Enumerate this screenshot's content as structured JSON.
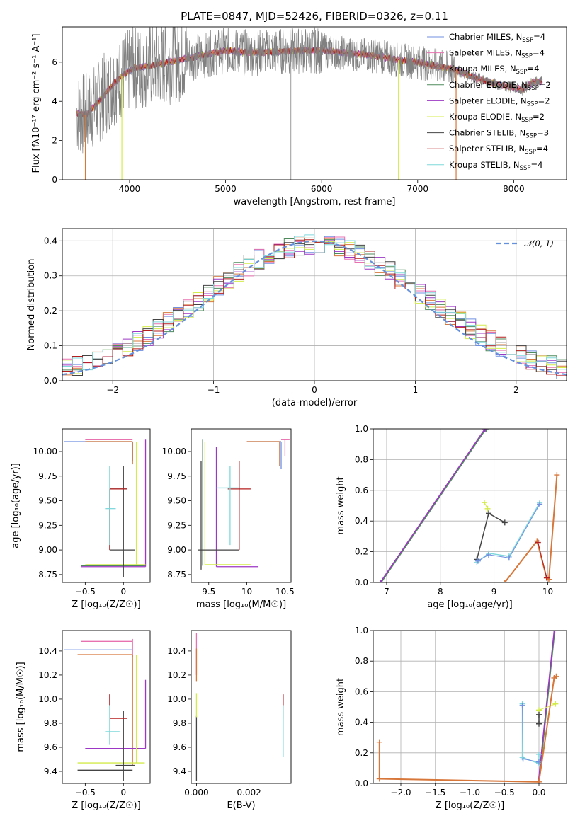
{
  "page": {
    "title": "PLATE=0847, MJD=52426, FIBERID=0326, z=0.11"
  },
  "colors": {
    "Chabrier MILES": "#6f8fe0",
    "Salpeter MILES": "#e872b0",
    "Kroupa MILES": "#d8773a",
    "Chabrier ELODIE": "#4f8a5c",
    "Salpeter ELODIE": "#9b37c4",
    "Kroupa ELODIE": "#d4ec4a",
    "Chabrier STELIB": "#444444",
    "Salpeter STELIB": "#b51e1e",
    "Kroupa STELIB": "#7fd8dc",
    "data": "#808080",
    "normal": "#6490dc"
  },
  "chart_data": [
    {
      "id": "spectrum",
      "type": "line",
      "title": "PLATE=0847, MJD=52426, FIBERID=0326, z=0.11",
      "xlabel": "wavelength [Angstrom, rest frame]",
      "ylabel": "Flux [fλ10⁻¹⁷ erg cm⁻² s⁻¹ A⁻¹]",
      "xlim": [
        3300,
        8550
      ],
      "ylim": [
        0,
        7.8
      ],
      "xticks": [
        4000,
        5000,
        6000,
        7000,
        8000
      ],
      "yticks": [
        0,
        2,
        4,
        6
      ],
      "legend_position": "top-right",
      "legend": [
        {
          "series": "Chabrier MILES",
          "label": "Chabrier MILES, N",
          "sub": "SSP",
          "tail": "=4"
        },
        {
          "series": "Salpeter MILES",
          "label": "Salpeter MILES, N",
          "sub": "SSP",
          "tail": "=4"
        },
        {
          "series": "Kroupa MILES",
          "label": "Kroupa MILES, N",
          "sub": "SSP",
          "tail": "=4"
        },
        {
          "series": "Chabrier ELODIE",
          "label": "Chabrier ELODIE, N",
          "sub": "SSP",
          "tail": "=2"
        },
        {
          "series": "Salpeter ELODIE",
          "label": "Salpeter ELODIE, N",
          "sub": "SSP",
          "tail": "=2"
        },
        {
          "series": "Kroupa ELODIE",
          "label": "Kroupa ELODIE, N",
          "sub": "SSP",
          "tail": "=2"
        },
        {
          "series": "Chabrier STELIB",
          "label": "Chabrier STELIB, N",
          "sub": "SSP",
          "tail": "=3"
        },
        {
          "series": "Salpeter STELIB",
          "label": "Salpeter STELIB, N",
          "sub": "SSP",
          "tail": "=4"
        },
        {
          "series": "Kroupa STELIB",
          "label": "Kroupa STELIB, N",
          "sub": "SSP",
          "tail": "=4"
        }
      ],
      "continuum": {
        "x": [
          3450,
          3550,
          3700,
          3850,
          3950,
          4050,
          4200,
          4400,
          4600,
          4800,
          5000,
          5200,
          5400,
          5600,
          5800,
          6000,
          6200,
          6400,
          6600,
          6800,
          7000,
          7200,
          7400,
          7600,
          7800,
          7950,
          8100,
          8200,
          8300
        ],
        "y": [
          3.4,
          3.3,
          4.1,
          5.0,
          5.4,
          5.7,
          5.8,
          6.0,
          6.2,
          6.4,
          6.6,
          6.5,
          6.5,
          6.55,
          6.6,
          6.6,
          6.5,
          6.4,
          6.3,
          6.1,
          6.0,
          5.8,
          5.6,
          5.2,
          4.9,
          4.75,
          4.6,
          5.0,
          5.0
        ]
      },
      "model_dips": [
        {
          "series": "Kroupa MILES",
          "x": 3540
        },
        {
          "series": "Kroupa ELODIE",
          "x": 3920
        },
        {
          "series": "Kroupa ELODIE",
          "x": 6800
        },
        {
          "series": "Kroupa MILES",
          "x": 7400
        }
      ]
    },
    {
      "id": "residuals",
      "type": "histogram",
      "xlabel": "(data-model)/error",
      "ylabel": "Normed distribution",
      "xlim": [
        -2.5,
        2.5
      ],
      "ylim": [
        0,
        0.435
      ],
      "xticks": [
        -2,
        -1,
        0,
        1,
        2
      ],
      "yticks": [
        0.0,
        0.1,
        0.2,
        0.3,
        0.4
      ],
      "bin_width": 0.1,
      "normal_label": "𝒩(0, 1)",
      "legend_position": "top-right"
    },
    {
      "id": "age-vs-Z",
      "type": "scatter",
      "xlabel": "Z [log₁₀(Z/Z☉)]",
      "ylabel": "age  [log₁₀(age/yr)]",
      "xlim": [
        -0.8,
        0.35
      ],
      "ylim": [
        8.67,
        10.23
      ],
      "xticks": [
        -0.5,
        0.0
      ],
      "yticks": [
        8.75,
        9.0,
        9.25,
        9.5,
        9.75,
        10.0
      ],
      "ytick_labels": [
        "8.75",
        "9.00",
        "9.25",
        "9.50",
        "9.75",
        "10.00"
      ],
      "segments": [
        {
          "series": "Chabrier MILES",
          "x1": -0.78,
          "y1": 10.1,
          "x2": 0.12,
          "y2": 10.1
        },
        {
          "series": "Chabrier MILES",
          "x1": 0.12,
          "y1": 10.1,
          "x2": 0.12,
          "y2": 9.9
        },
        {
          "series": "Salpeter MILES",
          "x1": -0.5,
          "y1": 10.12,
          "x2": 0.12,
          "y2": 10.12
        },
        {
          "series": "Kroupa MILES",
          "x1": -0.5,
          "y1": 10.1,
          "x2": 0.12,
          "y2": 10.1
        },
        {
          "series": "Kroupa MILES",
          "x1": 0.12,
          "y1": 10.1,
          "x2": 0.12,
          "y2": 9.87
        },
        {
          "series": "Chabrier ELODIE",
          "x1": -0.55,
          "y1": 8.84,
          "x2": 0.29,
          "y2": 8.84
        },
        {
          "series": "Salpeter ELODIE",
          "x1": -0.55,
          "y1": 8.83,
          "x2": 0.29,
          "y2": 8.83
        },
        {
          "series": "Salpeter ELODIE",
          "x1": 0.29,
          "y1": 8.83,
          "x2": 0.29,
          "y2": 10.12
        },
        {
          "series": "Kroupa ELODIE",
          "x1": -0.5,
          "y1": 8.85,
          "x2": 0.29,
          "y2": 8.85
        },
        {
          "series": "Kroupa ELODIE",
          "x1": 0.17,
          "y1": 8.85,
          "x2": 0.17,
          "y2": 10.1
        },
        {
          "series": "Chabrier STELIB",
          "x1": -0.18,
          "y1": 9.62,
          "x2": 0.05,
          "y2": 9.62
        },
        {
          "series": "Chabrier STELIB",
          "x1": -0.18,
          "y1": 9.0,
          "x2": 0.15,
          "y2": 9.0
        },
        {
          "series": "Chabrier STELIB",
          "x1": 0.0,
          "y1": 8.72,
          "x2": 0.0,
          "y2": 9.85
        },
        {
          "series": "Salpeter STELIB",
          "x1": -0.18,
          "y1": 9.0,
          "x2": -0.18,
          "y2": 9.62
        },
        {
          "series": "Salpeter STELIB",
          "x1": -0.18,
          "y1": 9.62,
          "x2": 0.05,
          "y2": 9.62
        },
        {
          "series": "Kroupa STELIB",
          "x1": -0.18,
          "y1": 9.05,
          "x2": -0.18,
          "y2": 9.85
        },
        {
          "series": "Kroupa STELIB",
          "x1": -0.24,
          "y1": 9.42,
          "x2": -0.1,
          "y2": 9.42
        }
      ]
    },
    {
      "id": "age-vs-mass",
      "type": "scatter",
      "xlabel": "mass [log₁₀(M/M☉)]",
      "ylabel": "",
      "xlim": [
        9.27,
        10.58
      ],
      "ylim": [
        8.67,
        10.23
      ],
      "xticks": [
        9.5,
        10.0,
        10.5
      ],
      "yticks": [
        8.75,
        9.0,
        9.25,
        9.5,
        9.75,
        10.0
      ],
      "ytick_labels": [
        "8.75",
        "9.00",
        "9.25",
        "9.50",
        "9.75",
        "10.00"
      ],
      "segments": [
        {
          "series": "Chabrier MILES",
          "x1": 10.0,
          "y1": 10.1,
          "x2": 10.45,
          "y2": 10.1
        },
        {
          "series": "Chabrier MILES",
          "x1": 10.45,
          "y1": 10.1,
          "x2": 10.45,
          "y2": 9.82
        },
        {
          "series": "Salpeter MILES",
          "x1": 10.45,
          "y1": 10.12,
          "x2": 10.56,
          "y2": 10.12
        },
        {
          "series": "Salpeter MILES",
          "x1": 10.5,
          "y1": 10.12,
          "x2": 10.5,
          "y2": 9.95
        },
        {
          "series": "Kroupa MILES",
          "x1": 10.0,
          "y1": 10.1,
          "x2": 10.43,
          "y2": 10.1
        },
        {
          "series": "Kroupa MILES",
          "x1": 10.43,
          "y1": 10.1,
          "x2": 10.43,
          "y2": 9.85
        },
        {
          "series": "Chabrier ELODIE",
          "x1": 9.42,
          "y1": 8.84,
          "x2": 9.42,
          "y2": 10.12
        },
        {
          "series": "Salpeter ELODIE",
          "x1": 9.6,
          "y1": 8.83,
          "x2": 10.15,
          "y2": 8.83
        },
        {
          "series": "Salpeter ELODIE",
          "x1": 9.6,
          "y1": 8.83,
          "x2": 9.6,
          "y2": 10.05
        },
        {
          "series": "Kroupa ELODIE",
          "x1": 9.45,
          "y1": 8.85,
          "x2": 10.05,
          "y2": 8.85
        },
        {
          "series": "Kroupa ELODIE",
          "x1": 9.45,
          "y1": 8.85,
          "x2": 9.45,
          "y2": 10.1
        },
        {
          "series": "Chabrier STELIB",
          "x1": 9.36,
          "y1": 9.0,
          "x2": 9.9,
          "y2": 9.0
        },
        {
          "series": "Chabrier STELIB",
          "x1": 9.4,
          "y1": 8.8,
          "x2": 9.4,
          "y2": 9.9
        },
        {
          "series": "Salpeter STELIB",
          "x1": 9.75,
          "y1": 9.62,
          "x2": 10.05,
          "y2": 9.62
        },
        {
          "series": "Salpeter STELIB",
          "x1": 9.9,
          "y1": 9.0,
          "x2": 9.9,
          "y2": 9.9
        },
        {
          "series": "Kroupa STELIB",
          "x1": 9.78,
          "y1": 9.05,
          "x2": 9.78,
          "y2": 9.85
        },
        {
          "series": "Kroupa STELIB",
          "x1": 9.6,
          "y1": 9.63,
          "x2": 9.9,
          "y2": 9.63
        }
      ]
    },
    {
      "id": "weight-vs-age",
      "type": "line",
      "xlabel": "age  [log₁₀(age/yr)]",
      "ylabel": "mass weight",
      "xlim": [
        6.75,
        10.35
      ],
      "ylim": [
        0,
        1
      ],
      "xticks": [
        7,
        8,
        9,
        10
      ],
      "yticks": [
        0.0,
        0.2,
        0.4,
        0.6,
        0.8,
        1.0
      ],
      "series": [
        {
          "name": "Chabrier ELODIE",
          "x": [
            6.9,
            8.85
          ],
          "y": [
            0.0,
            1.0
          ],
          "width": 1.5
        },
        {
          "name": "Salpeter ELODIE",
          "x": [
            6.88,
            8.83
          ],
          "y": [
            0.0,
            1.0
          ],
          "width": 1.5
        },
        {
          "name": "Kroupa ELODIE",
          "x": [
            8.82,
            8.88
          ],
          "y": [
            0.52,
            0.48
          ],
          "width": 1
        },
        {
          "name": "Chabrier STELIB",
          "x": [
            8.68,
            8.9,
            9.2
          ],
          "y": [
            0.15,
            0.45,
            0.39
          ],
          "width": 1.5
        },
        {
          "name": "Kroupa STELIB",
          "x": [
            8.68,
            8.9,
            9.28,
            9.85
          ],
          "y": [
            0.13,
            0.19,
            0.17,
            0.52
          ],
          "width": 1.5
        },
        {
          "name": "Chabrier MILES",
          "x": [
            8.7,
            8.9,
            9.28,
            9.85
          ],
          "y": [
            0.14,
            0.18,
            0.16,
            0.51
          ],
          "width": 1
        },
        {
          "name": "Kroupa MILES",
          "x": [
            9.2,
            9.8,
            9.98,
            10.02,
            10.17
          ],
          "y": [
            0.0,
            0.27,
            0.03,
            0.02,
            0.7
          ],
          "width": 2
        },
        {
          "name": "Salpeter STELIB",
          "x": [
            9.82,
            9.98
          ],
          "y": [
            0.26,
            0.03
          ],
          "width": 1
        }
      ]
    },
    {
      "id": "mass-vs-Z",
      "type": "scatter",
      "xlabel": "Z [log₁₀(Z/Z☉)]",
      "ylabel": "mass [log₁₀(M/M☉)]",
      "xlim": [
        -0.8,
        0.35
      ],
      "ylim": [
        9.3,
        10.57
      ],
      "xticks": [
        -0.5,
        0.0
      ],
      "yticks": [
        9.4,
        9.6,
        9.8,
        10.0,
        10.2,
        10.4
      ],
      "segments": [
        {
          "series": "Chabrier MILES",
          "x1": -0.78,
          "y1": 10.41,
          "x2": 0.12,
          "y2": 10.41
        },
        {
          "series": "Salpeter MILES",
          "x1": -0.55,
          "y1": 10.48,
          "x2": 0.12,
          "y2": 10.48
        },
        {
          "series": "Salpeter MILES",
          "x1": 0.12,
          "y1": 10.5,
          "x2": 0.12,
          "y2": 10.35
        },
        {
          "series": "Kroupa MILES",
          "x1": -0.6,
          "y1": 10.37,
          "x2": 0.12,
          "y2": 10.37
        },
        {
          "series": "Kroupa MILES",
          "x1": 0.12,
          "y1": 10.37,
          "x2": 0.12,
          "y2": 9.45
        },
        {
          "series": "Salpeter ELODIE",
          "x1": -0.5,
          "y1": 9.59,
          "x2": 0.29,
          "y2": 9.59
        },
        {
          "series": "Salpeter ELODIE",
          "x1": 0.29,
          "y1": 9.59,
          "x2": 0.29,
          "y2": 10.16
        },
        {
          "series": "Kroupa ELODIE",
          "x1": -0.6,
          "y1": 9.47,
          "x2": 0.28,
          "y2": 9.47
        },
        {
          "series": "Kroupa ELODIE",
          "x1": 0.17,
          "y1": 9.47,
          "x2": 0.17,
          "y2": 10.37
        },
        {
          "series": "Chabrier STELIB",
          "x1": -0.6,
          "y1": 9.41,
          "x2": 0.12,
          "y2": 9.41
        },
        {
          "series": "Chabrier STELIB",
          "x1": -0.1,
          "y1": 9.45,
          "x2": 0.15,
          "y2": 9.45
        },
        {
          "series": "Chabrier STELIB",
          "x1": 0.0,
          "y1": 9.32,
          "x2": 0.0,
          "y2": 9.9
        },
        {
          "series": "Salpeter STELIB",
          "x1": -0.18,
          "y1": 9.84,
          "x2": 0.05,
          "y2": 9.84
        },
        {
          "series": "Salpeter STELIB",
          "x1": -0.18,
          "y1": 9.95,
          "x2": -0.18,
          "y2": 10.04
        },
        {
          "series": "Kroupa STELIB",
          "x1": -0.18,
          "y1": 9.62,
          "x2": -0.18,
          "y2": 9.95
        },
        {
          "series": "Kroupa STELIB",
          "x1": -0.24,
          "y1": 9.73,
          "x2": -0.05,
          "y2": 9.73
        }
      ]
    },
    {
      "id": "mass-vs-EBV",
      "type": "scatter",
      "xlabel": "E(B-V)",
      "ylabel": "",
      "xlim": [
        -0.0002,
        0.0036
      ],
      "ylim": [
        9.3,
        10.57
      ],
      "xticks": [
        0.0,
        0.002
      ],
      "xtick_labels": [
        "0.000",
        "0.002"
      ],
      "yticks": [
        9.4,
        9.6,
        9.8,
        10.0,
        10.2,
        10.4
      ],
      "segments": [
        {
          "series": "Salpeter MILES",
          "x1": 0.0,
          "y1": 10.2,
          "x2": 0.0,
          "y2": 10.55
        },
        {
          "series": "Kroupa MILES",
          "x1": 0.0,
          "y1": 10.15,
          "x2": 0.0,
          "y2": 10.42
        },
        {
          "series": "Chabrier STELIB",
          "x1": 0.0,
          "y1": 9.32,
          "x2": 0.0,
          "y2": 9.86
        },
        {
          "series": "Kroupa ELODIE",
          "x1": 0.0,
          "y1": 9.85,
          "x2": 0.0,
          "y2": 10.05
        },
        {
          "series": "Salpeter STELIB",
          "x1": 0.0033,
          "y1": 9.84,
          "x2": 0.0033,
          "y2": 10.04
        },
        {
          "series": "Kroupa STELIB",
          "x1": 0.0033,
          "y1": 9.52,
          "x2": 0.0033,
          "y2": 9.95
        }
      ]
    },
    {
      "id": "weight-vs-Z",
      "type": "line",
      "xlabel": "Z [log₁₀(Z/Z☉)]",
      "ylabel": "mass weight",
      "xlim": [
        -2.4,
        0.4
      ],
      "ylim": [
        0,
        1
      ],
      "xticks": [
        -2.0,
        -1.5,
        -1.0,
        -0.5,
        0.0
      ],
      "xtick_labels": [
        "−2.0",
        "−1.5",
        "−1.0",
        "−0.5",
        "0.0"
      ],
      "yticks": [
        0.0,
        0.2,
        0.4,
        0.6,
        0.8,
        1.0
      ],
      "series": [
        {
          "name": "Chabrier ELODIE",
          "x": [
            0.0,
            0.23
          ],
          "y": [
            0.0,
            1.0
          ],
          "width": 1.5
        },
        {
          "name": "Salpeter ELODIE",
          "x": [
            -0.01,
            0.22
          ],
          "y": [
            0.0,
            1.0
          ],
          "width": 1.5
        },
        {
          "name": "Kroupa ELODIE",
          "x": [
            0.0,
            0.24
          ],
          "y": [
            0.48,
            0.52
          ],
          "width": 1
        },
        {
          "name": "Chabrier STELIB",
          "x": [
            0.0,
            0.0
          ],
          "y": [
            0.39,
            0.45
          ],
          "width": 1.5
        },
        {
          "name": "Kroupa STELIB",
          "x": [
            -0.24,
            -0.24,
            0.0,
            0.0
          ],
          "y": [
            0.52,
            0.17,
            0.13,
            0.19
          ],
          "width": 1.5
        },
        {
          "name": "Chabrier MILES",
          "x": [
            -0.24,
            -0.23,
            0.0
          ],
          "y": [
            0.51,
            0.16,
            0.14
          ],
          "width": 1
        },
        {
          "name": "Kroupa MILES",
          "x": [
            -2.31,
            -2.31,
            0.0,
            0.22,
            0.25
          ],
          "y": [
            0.27,
            0.03,
            0.01,
            0.69,
            0.7
          ],
          "width": 2
        }
      ]
    }
  ]
}
